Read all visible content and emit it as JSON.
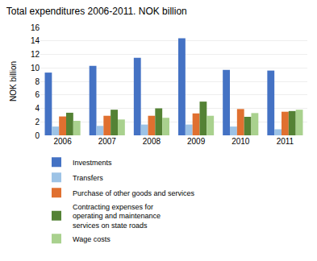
{
  "chart_data": {
    "type": "bar",
    "title": "Total expenditures 2006-2011. NOK billion",
    "ylabel": "NOK billion",
    "categories": [
      "2006",
      "2007",
      "2008",
      "2009",
      "2010",
      "2011"
    ],
    "series": [
      {
        "name": "Investments",
        "color": "#4472c4",
        "values": [
          9.3,
          10.3,
          11.5,
          14.4,
          9.7,
          9.6
        ]
      },
      {
        "name": "Transfers",
        "color": "#9dc3e6",
        "values": [
          1.3,
          1.4,
          1.6,
          1.6,
          1.3,
          0.9
        ]
      },
      {
        "name": "Purchase of other goods and services",
        "color": "#e07030",
        "values": [
          2.8,
          2.9,
          2.9,
          3.25,
          3.9,
          3.5
        ]
      },
      {
        "name": "Contracting expenses for\noperating and maintenance\nservices on state roads",
        "color": "#548235",
        "values": [
          3.35,
          3.8,
          4.0,
          5.0,
          2.75,
          3.6
        ]
      },
      {
        "name": "Wage costs",
        "color": "#a9d18e",
        "values": [
          2.15,
          2.35,
          2.6,
          2.9,
          3.3,
          3.8
        ]
      }
    ],
    "ylim": [
      0,
      16
    ],
    "yticks": [
      0,
      2,
      4,
      6,
      8,
      10,
      12,
      14,
      16
    ],
    "grid": true,
    "legend": "bottom"
  }
}
